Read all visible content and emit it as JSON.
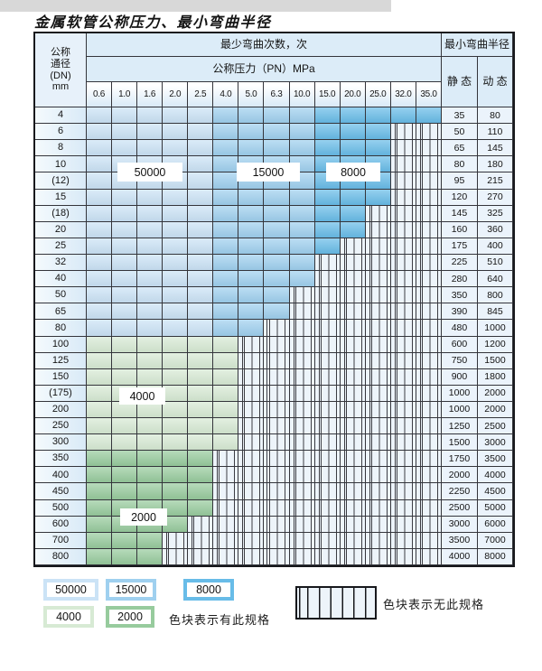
{
  "page": {
    "title": "金属软管公称压力、最小弯曲半径"
  },
  "colors": {
    "b1": "#cbe3f6",
    "b2": "#9fd0ef",
    "b3": "#68bce8",
    "g1": "#d7ead4",
    "g2": "#97cb9d",
    "hatchbg": "#edf4fa",
    "hatchline": "#3c3d43"
  },
  "table": {
    "dn_header": "公称\n通径\n(DN)\nmm",
    "bend_header": "最少弯曲次数，次",
    "pressure_header": "公称压力（PN）MPa",
    "radius_header": "最小弯曲半径",
    "static_header": "静 态",
    "dynamic_header": "动 态",
    "pressures": [
      "0.6",
      "1.0",
      "1.6",
      "2.0",
      "2.5",
      "4.0",
      "5.0",
      "6.3",
      "10.0",
      "15.0",
      "20.0",
      "25.0",
      "32.0",
      "35.0"
    ],
    "rows": [
      {
        "dn": "4",
        "zone": "blue",
        "colored": 14,
        "static": "35",
        "dynamic": "80"
      },
      {
        "dn": "6",
        "zone": "blue",
        "colored": 12,
        "static": "50",
        "dynamic": "110"
      },
      {
        "dn": "8",
        "zone": "blue",
        "colored": 12,
        "static": "65",
        "dynamic": "145"
      },
      {
        "dn": "10",
        "zone": "blue",
        "colored": 12,
        "static": "80",
        "dynamic": "180"
      },
      {
        "dn": "(12)",
        "zone": "blue",
        "colored": 12,
        "static": "95",
        "dynamic": "215"
      },
      {
        "dn": "15",
        "zone": "blue",
        "colored": 12,
        "static": "120",
        "dynamic": "270"
      },
      {
        "dn": "(18)",
        "zone": "blue",
        "colored": 11,
        "static": "145",
        "dynamic": "325"
      },
      {
        "dn": "20",
        "zone": "blue",
        "colored": 11,
        "static": "160",
        "dynamic": "360"
      },
      {
        "dn": "25",
        "zone": "blue",
        "colored": 10,
        "static": "175",
        "dynamic": "400"
      },
      {
        "dn": "32",
        "zone": "blue",
        "colored": 9,
        "static": "225",
        "dynamic": "510"
      },
      {
        "dn": "40",
        "zone": "blue",
        "colored": 9,
        "static": "280",
        "dynamic": "640"
      },
      {
        "dn": "50",
        "zone": "blue",
        "colored": 8,
        "static": "350",
        "dynamic": "800"
      },
      {
        "dn": "65",
        "zone": "blue",
        "colored": 8,
        "static": "390",
        "dynamic": "845"
      },
      {
        "dn": "80",
        "zone": "blue",
        "colored": 7,
        "static": "480",
        "dynamic": "1000"
      },
      {
        "dn": "100",
        "zone": "g1",
        "colored": 6,
        "static": "600",
        "dynamic": "1200"
      },
      {
        "dn": "125",
        "zone": "g1",
        "colored": 6,
        "static": "750",
        "dynamic": "1500"
      },
      {
        "dn": "150",
        "zone": "g1",
        "colored": 6,
        "static": "900",
        "dynamic": "1800"
      },
      {
        "dn": "(175)",
        "zone": "g1",
        "colored": 6,
        "static": "1000",
        "dynamic": "2000"
      },
      {
        "dn": "200",
        "zone": "g1",
        "colored": 6,
        "static": "1000",
        "dynamic": "2000"
      },
      {
        "dn": "250",
        "zone": "g1",
        "colored": 6,
        "static": "1250",
        "dynamic": "2500"
      },
      {
        "dn": "300",
        "zone": "g1",
        "colored": 6,
        "static": "1500",
        "dynamic": "3000"
      },
      {
        "dn": "350",
        "zone": "g2",
        "colored": 5,
        "static": "1750",
        "dynamic": "3500"
      },
      {
        "dn": "400",
        "zone": "g2",
        "colored": 5,
        "static": "2000",
        "dynamic": "4000"
      },
      {
        "dn": "450",
        "zone": "g2",
        "colored": 5,
        "static": "2250",
        "dynamic": "4500"
      },
      {
        "dn": "500",
        "zone": "g2",
        "colored": 5,
        "static": "2500",
        "dynamic": "5000"
      },
      {
        "dn": "600",
        "zone": "g2",
        "colored": 4,
        "static": "3000",
        "dynamic": "6000"
      },
      {
        "dn": "700",
        "zone": "g2",
        "colored": 3,
        "static": "3500",
        "dynamic": "7000"
      },
      {
        "dn": "800",
        "zone": "g2",
        "colored": 3,
        "static": "4000",
        "dynamic": "8000"
      }
    ]
  },
  "overlays": [
    {
      "text": "50000"
    },
    {
      "text": "15000"
    },
    {
      "text": "8000"
    },
    {
      "text": "4000"
    },
    {
      "text": "2000"
    }
  ],
  "legend": {
    "items": [
      {
        "value": "50000",
        "key": "b1"
      },
      {
        "value": "15000",
        "key": "b2"
      },
      {
        "value": "8000",
        "key": "b3"
      },
      {
        "value": "4000",
        "key": "g1"
      },
      {
        "value": "2000",
        "key": "g2"
      }
    ],
    "has_spec_note": "色块表示有此规格",
    "no_spec_note": "色块表示无此规格"
  },
  "chart_data": {
    "type": "heatmap",
    "title": "金属软管公称压力、最小弯曲半径",
    "x_axis": {
      "label": "公称压力 (PN) MPa",
      "ticks": [
        0.6,
        1.0,
        1.6,
        2.0,
        2.5,
        4.0,
        5.0,
        6.3,
        10.0,
        15.0,
        20.0,
        25.0,
        32.0,
        35.0
      ]
    },
    "y_axis": {
      "label": "公称通径 (DN) mm",
      "ticks": [
        "4",
        "6",
        "8",
        "10",
        "(12)",
        "15",
        "(18)",
        "20",
        "25",
        "32",
        "40",
        "50",
        "65",
        "80",
        "100",
        "125",
        "150",
        "(175)",
        "200",
        "250",
        "300",
        "350",
        "400",
        "450",
        "500",
        "600",
        "700",
        "800"
      ]
    },
    "value_label": "最少弯曲次数, 次",
    "cycle_zones": [
      {
        "cycles": 50000,
        "pn_range": [
          0.6,
          2.5
        ],
        "dn_rows": "4-80"
      },
      {
        "cycles": 15000,
        "pn_range": [
          4.0,
          10.0
        ],
        "dn_rows": "4-80"
      },
      {
        "cycles": 8000,
        "pn_range": [
          15.0,
          35.0
        ],
        "dn_rows": "4-25"
      },
      {
        "cycles": 4000,
        "pn_range": [
          0.6,
          4.0
        ],
        "dn_rows": "100-300"
      },
      {
        "cycles": 2000,
        "pn_range": [
          0.6,
          2.5
        ],
        "dn_rows": "350-800"
      }
    ],
    "rows": [
      {
        "dn": "4",
        "max_pn": 35.0,
        "static_radius": 35,
        "dynamic_radius": 80
      },
      {
        "dn": "6",
        "max_pn": 25.0,
        "static_radius": 50,
        "dynamic_radius": 110
      },
      {
        "dn": "8",
        "max_pn": 25.0,
        "static_radius": 65,
        "dynamic_radius": 145
      },
      {
        "dn": "10",
        "max_pn": 25.0,
        "static_radius": 80,
        "dynamic_radius": 180
      },
      {
        "dn": "(12)",
        "max_pn": 25.0,
        "static_radius": 95,
        "dynamic_radius": 215
      },
      {
        "dn": "15",
        "max_pn": 25.0,
        "static_radius": 120,
        "dynamic_radius": 270
      },
      {
        "dn": "(18)",
        "max_pn": 20.0,
        "static_radius": 145,
        "dynamic_radius": 325
      },
      {
        "dn": "20",
        "max_pn": 20.0,
        "static_radius": 160,
        "dynamic_radius": 360
      },
      {
        "dn": "25",
        "max_pn": 15.0,
        "static_radius": 175,
        "dynamic_radius": 400
      },
      {
        "dn": "32",
        "max_pn": 10.0,
        "static_radius": 225,
        "dynamic_radius": 510
      },
      {
        "dn": "40",
        "max_pn": 10.0,
        "static_radius": 280,
        "dynamic_radius": 640
      },
      {
        "dn": "50",
        "max_pn": 6.3,
        "static_radius": 350,
        "dynamic_radius": 800
      },
      {
        "dn": "65",
        "max_pn": 6.3,
        "static_radius": 390,
        "dynamic_radius": 845
      },
      {
        "dn": "80",
        "max_pn": 5.0,
        "static_radius": 480,
        "dynamic_radius": 1000
      },
      {
        "dn": "100",
        "max_pn": 4.0,
        "static_radius": 600,
        "dynamic_radius": 1200
      },
      {
        "dn": "125",
        "max_pn": 4.0,
        "static_radius": 750,
        "dynamic_radius": 1500
      },
      {
        "dn": "150",
        "max_pn": 4.0,
        "static_radius": 900,
        "dynamic_radius": 1800
      },
      {
        "dn": "(175)",
        "max_pn": 4.0,
        "static_radius": 1000,
        "dynamic_radius": 2000
      },
      {
        "dn": "200",
        "max_pn": 4.0,
        "static_radius": 1000,
        "dynamic_radius": 2000
      },
      {
        "dn": "250",
        "max_pn": 4.0,
        "static_radius": 1250,
        "dynamic_radius": 2500
      },
      {
        "dn": "300",
        "max_pn": 4.0,
        "static_radius": 1500,
        "dynamic_radius": 3000
      },
      {
        "dn": "350",
        "max_pn": 2.5,
        "static_radius": 1750,
        "dynamic_radius": 3500
      },
      {
        "dn": "400",
        "max_pn": 2.5,
        "static_radius": 2000,
        "dynamic_radius": 4000
      },
      {
        "dn": "450",
        "max_pn": 2.5,
        "static_radius": 2250,
        "dynamic_radius": 4500
      },
      {
        "dn": "500",
        "max_pn": 2.5,
        "static_radius": 2500,
        "dynamic_radius": 5000
      },
      {
        "dn": "600",
        "max_pn": 2.0,
        "static_radius": 3000,
        "dynamic_radius": 6000
      },
      {
        "dn": "700",
        "max_pn": 1.6,
        "static_radius": 3500,
        "dynamic_radius": 7000
      },
      {
        "dn": "800",
        "max_pn": 1.6,
        "static_radius": 4000,
        "dynamic_radius": 8000
      }
    ],
    "legend_position": "bottom",
    "grid": true
  }
}
